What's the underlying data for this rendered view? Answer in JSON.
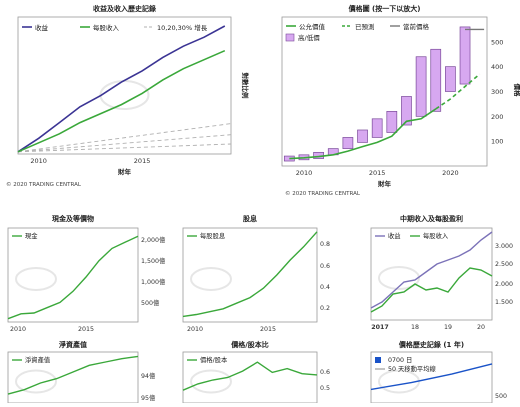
{
  "chart_data": [
    {
      "id": "eps_growth",
      "type": "line",
      "title": "收益及收入歷史記錄",
      "ylabel": "對數比例",
      "xlabel": "財年",
      "legend": [
        "收益",
        "每股收入",
        "10,20,30% 增長"
      ],
      "x_ticks": [
        "2010",
        "2015"
      ],
      "series": [
        {
          "name": "收益",
          "color": "#3b3494",
          "x": [
            2009,
            2010,
            2011,
            2012,
            2013,
            2014,
            2015,
            2016,
            2017,
            2018,
            2019
          ],
          "y": [
            1.0,
            1.6,
            2.3,
            3.0,
            3.5,
            4.1,
            4.6,
            5.2,
            5.7,
            6.1,
            6.6
          ]
        },
        {
          "name": "每股收入",
          "color": "#3aa83a",
          "x": [
            2009,
            2010,
            2011,
            2012,
            2013,
            2014,
            2015,
            2016,
            2017,
            2018,
            2019
          ],
          "y": [
            1.0,
            1.4,
            1.8,
            2.3,
            2.7,
            3.1,
            3.6,
            4.2,
            4.7,
            5.1,
            5.5
          ]
        }
      ],
      "growth_lines": [
        0.1,
        0.2,
        0.3
      ],
      "footer": "© 2020 TRADING CENTRAL"
    },
    {
      "id": "price_chart",
      "type": "bar",
      "title": "價格圖 (按一下以放大)",
      "xlabel": "財年",
      "ylabel": "價格",
      "legend": [
        "公允價值",
        "已預測",
        "當前價格",
        "高/低價"
      ],
      "y_ticks": [
        100,
        200,
        300,
        400,
        500
      ],
      "x_ticks": [
        "2010",
        "2015",
        "2020"
      ],
      "ylim": [
        0,
        600
      ],
      "ranges": [
        {
          "year": 2009,
          "low": 20,
          "high": 40
        },
        {
          "year": 2010,
          "low": 25,
          "high": 45
        },
        {
          "year": 2011,
          "low": 30,
          "high": 55
        },
        {
          "year": 2012,
          "low": 45,
          "high": 70
        },
        {
          "year": 2013,
          "low": 70,
          "high": 115
        },
        {
          "year": 2014,
          "low": 95,
          "high": 145
        },
        {
          "year": 2015,
          "low": 115,
          "high": 190
        },
        {
          "year": 2016,
          "low": 135,
          "high": 220
        },
        {
          "year": 2017,
          "low": 165,
          "high": 280
        },
        {
          "year": 2018,
          "low": 200,
          "high": 440
        },
        {
          "year": 2019,
          "low": 220,
          "high": 470
        },
        {
          "year": 2020,
          "low": 300,
          "high": 400
        },
        {
          "year": 2021,
          "low": 330,
          "high": 560
        }
      ],
      "fair_value": {
        "x": [
          2009,
          2010,
          2011,
          2012,
          2013,
          2014,
          2015,
          2016,
          2017,
          2018,
          2019
        ],
        "y": [
          30,
          33,
          38,
          45,
          60,
          78,
          95,
          120,
          180,
          190,
          230
        ]
      },
      "forecast": {
        "x": [
          2019,
          2020,
          2021,
          2022
        ],
        "y": [
          230,
          270,
          320,
          370
        ]
      },
      "current_price": {
        "x": [
          2021,
          2022.3
        ],
        "y": [
          550,
          550
        ]
      },
      "footer": "© 2020 TRADING CENTRAL"
    },
    {
      "id": "cash",
      "type": "line",
      "title": "現金及等價物",
      "legend": [
        "現金"
      ],
      "y_ticks": [
        "500億",
        "1,000億",
        "1,500億",
        "2,000億"
      ],
      "x_ticks": [
        "2010",
        "2015"
      ],
      "series": [
        {
          "name": "現金",
          "color": "#3aa83a",
          "x": [
            2009,
            2010,
            2011,
            2012,
            2013,
            2014,
            2015,
            2016,
            2017,
            2018,
            2019
          ],
          "y": [
            80,
            200,
            220,
            350,
            480,
            750,
            1100,
            1500,
            1800,
            1950,
            2100
          ]
        }
      ],
      "ylim": [
        0,
        2300
      ]
    },
    {
      "id": "dividend",
      "type": "line",
      "title": "股息",
      "legend": [
        "每股股息"
      ],
      "y_ticks": [
        "0.2",
        "0.4",
        "0.6",
        "0.8"
      ],
      "x_ticks": [
        "2010",
        "2015"
      ],
      "series": [
        {
          "name": "每股股息",
          "color": "#3aa83a",
          "x": [
            2009,
            2010,
            2011,
            2012,
            2013,
            2014,
            2015,
            2016,
            2017,
            2018,
            2019
          ],
          "y": [
            0.06,
            0.08,
            0.11,
            0.14,
            0.2,
            0.26,
            0.36,
            0.5,
            0.66,
            0.8,
            0.96
          ]
        }
      ],
      "ylim": [
        0,
        1.0
      ]
    },
    {
      "id": "quarterly",
      "type": "line",
      "title": "中期收入及每股盈利",
      "legend": [
        "收益",
        "每股收入"
      ],
      "y_ticks": [
        "1.500",
        "2.000",
        "2.500",
        "3.000"
      ],
      "x_ticks": [
        "2017",
        "18",
        "19",
        "20"
      ],
      "series": [
        {
          "name": "收益",
          "color": "#7b72b8",
          "x": [
            0,
            1,
            2,
            3,
            4,
            5,
            6,
            7,
            8,
            9,
            10,
            11
          ],
          "y": [
            1.3,
            1.45,
            1.7,
            1.95,
            2.0,
            2.2,
            2.4,
            2.5,
            2.6,
            2.75,
            3.0,
            3.2
          ]
        },
        {
          "name": "每股收入",
          "color": "#3aa83a",
          "x": [
            0,
            1,
            2,
            3,
            4,
            5,
            6,
            7,
            8,
            9,
            10,
            11
          ],
          "y": [
            1.2,
            1.35,
            1.65,
            1.7,
            1.9,
            1.75,
            1.8,
            1.7,
            2.05,
            2.3,
            2.25,
            2.1
          ]
        }
      ],
      "ylim": [
        1.0,
        3.3
      ]
    },
    {
      "id": "net_assets",
      "type": "line",
      "title": "淨資產值",
      "legend": [
        "淨資產值"
      ],
      "y_ticks": [
        "94億",
        "95億"
      ],
      "series": [
        {
          "name": "淨資產值",
          "color": "#3aa83a",
          "x": [
            0,
            1,
            2,
            3,
            4,
            5,
            6,
            7,
            8
          ],
          "y": [
            40,
            60,
            90,
            110,
            140,
            170,
            185,
            200,
            210
          ]
        }
      ],
      "ylim": [
        0,
        230
      ]
    },
    {
      "id": "payout",
      "type": "line",
      "title": "價格/股本比",
      "legend": [
        "價格/股本"
      ],
      "y_ticks": [
        "0.5",
        "0.6"
      ],
      "series": [
        {
          "name": "價格/股本",
          "color": "#3aa83a",
          "x": [
            0,
            1,
            2,
            3,
            4,
            5,
            6,
            7,
            8,
            9
          ],
          "y": [
            0.4,
            0.45,
            0.48,
            0.5,
            0.55,
            0.62,
            0.54,
            0.57,
            0.53,
            0.52
          ]
        }
      ],
      "ylim": [
        0.3,
        0.7
      ]
    },
    {
      "id": "price_history",
      "type": "line",
      "title": "價格歷史記錄 (1 年)",
      "legend": [
        "0700 日",
        "50 天移動平均線"
      ],
      "y_ticks": [
        "500"
      ],
      "series": [
        {
          "name": "0700 日",
          "color": "#1a53c8",
          "x": [
            0,
            1,
            2,
            3
          ],
          "y": [
            380,
            420,
            470,
            530
          ]
        }
      ],
      "ylim": [
        300,
        600
      ]
    }
  ]
}
